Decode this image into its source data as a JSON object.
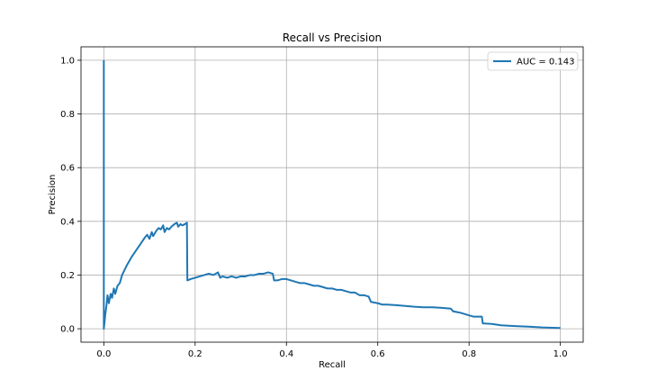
{
  "chart_data": {
    "type": "line",
    "title": "Recall vs Precision",
    "xlabel": "Recall",
    "ylabel": "Precision",
    "xlim": [
      -0.05,
      1.05
    ],
    "ylim": [
      -0.05,
      1.05
    ],
    "xticks": [
      0.0,
      0.2,
      0.4,
      0.6,
      0.8,
      1.0
    ],
    "yticks": [
      0.0,
      0.2,
      0.4,
      0.6,
      0.8,
      1.0
    ],
    "xtick_labels": [
      "0.0",
      "0.2",
      "0.4",
      "0.6",
      "0.8",
      "1.0"
    ],
    "ytick_labels": [
      "0.0",
      "0.2",
      "0.4",
      "0.6",
      "0.8",
      "1.0"
    ],
    "grid": true,
    "legend_position": "top-right",
    "series": [
      {
        "name": "AUC = 0.143",
        "color": "#1f77b4",
        "points": [
          [
            0.0,
            1.0
          ],
          [
            0.0,
            0.0
          ],
          [
            0.003,
            0.05
          ],
          [
            0.006,
            0.09
          ],
          [
            0.008,
            0.125
          ],
          [
            0.011,
            0.095
          ],
          [
            0.015,
            0.13
          ],
          [
            0.018,
            0.115
          ],
          [
            0.022,
            0.15
          ],
          [
            0.025,
            0.13
          ],
          [
            0.03,
            0.16
          ],
          [
            0.035,
            0.17
          ],
          [
            0.04,
            0.2
          ],
          [
            0.05,
            0.235
          ],
          [
            0.06,
            0.265
          ],
          [
            0.07,
            0.29
          ],
          [
            0.08,
            0.315
          ],
          [
            0.09,
            0.34
          ],
          [
            0.095,
            0.35
          ],
          [
            0.1,
            0.335
          ],
          [
            0.105,
            0.36
          ],
          [
            0.108,
            0.345
          ],
          [
            0.115,
            0.365
          ],
          [
            0.12,
            0.375
          ],
          [
            0.125,
            0.37
          ],
          [
            0.13,
            0.385
          ],
          [
            0.133,
            0.36
          ],
          [
            0.138,
            0.375
          ],
          [
            0.143,
            0.37
          ],
          [
            0.148,
            0.38
          ],
          [
            0.155,
            0.39
          ],
          [
            0.16,
            0.395
          ],
          [
            0.163,
            0.38
          ],
          [
            0.168,
            0.39
          ],
          [
            0.172,
            0.385
          ],
          [
            0.178,
            0.39
          ],
          [
            0.182,
            0.395
          ],
          [
            0.183,
            0.18
          ],
          [
            0.19,
            0.185
          ],
          [
            0.2,
            0.19
          ],
          [
            0.21,
            0.195
          ],
          [
            0.22,
            0.2
          ],
          [
            0.23,
            0.205
          ],
          [
            0.24,
            0.2
          ],
          [
            0.25,
            0.21
          ],
          [
            0.255,
            0.19
          ],
          [
            0.26,
            0.195
          ],
          [
            0.27,
            0.19
          ],
          [
            0.28,
            0.195
          ],
          [
            0.29,
            0.19
          ],
          [
            0.3,
            0.195
          ],
          [
            0.31,
            0.195
          ],
          [
            0.32,
            0.2
          ],
          [
            0.33,
            0.2
          ],
          [
            0.34,
            0.205
          ],
          [
            0.35,
            0.205
          ],
          [
            0.36,
            0.21
          ],
          [
            0.37,
            0.205
          ],
          [
            0.373,
            0.18
          ],
          [
            0.38,
            0.18
          ],
          [
            0.39,
            0.185
          ],
          [
            0.4,
            0.185
          ],
          [
            0.41,
            0.18
          ],
          [
            0.42,
            0.175
          ],
          [
            0.43,
            0.17
          ],
          [
            0.44,
            0.17
          ],
          [
            0.45,
            0.165
          ],
          [
            0.46,
            0.16
          ],
          [
            0.47,
            0.16
          ],
          [
            0.48,
            0.155
          ],
          [
            0.49,
            0.15
          ],
          [
            0.5,
            0.15
          ],
          [
            0.51,
            0.145
          ],
          [
            0.52,
            0.145
          ],
          [
            0.53,
            0.14
          ],
          [
            0.54,
            0.135
          ],
          [
            0.55,
            0.135
          ],
          [
            0.56,
            0.125
          ],
          [
            0.57,
            0.125
          ],
          [
            0.58,
            0.12
          ],
          [
            0.585,
            0.1
          ],
          [
            0.6,
            0.095
          ],
          [
            0.61,
            0.09
          ],
          [
            0.62,
            0.09
          ],
          [
            0.64,
            0.088
          ],
          [
            0.66,
            0.085
          ],
          [
            0.68,
            0.082
          ],
          [
            0.7,
            0.08
          ],
          [
            0.72,
            0.08
          ],
          [
            0.74,
            0.078
          ],
          [
            0.76,
            0.075
          ],
          [
            0.765,
            0.065
          ],
          [
            0.78,
            0.06
          ],
          [
            0.79,
            0.055
          ],
          [
            0.8,
            0.05
          ],
          [
            0.81,
            0.045
          ],
          [
            0.828,
            0.045
          ],
          [
            0.83,
            0.02
          ],
          [
            0.85,
            0.018
          ],
          [
            0.87,
            0.013
          ],
          [
            0.9,
            0.01
          ],
          [
            0.93,
            0.008
          ],
          [
            0.96,
            0.005
          ],
          [
            1.0,
            0.003
          ]
        ]
      }
    ]
  }
}
